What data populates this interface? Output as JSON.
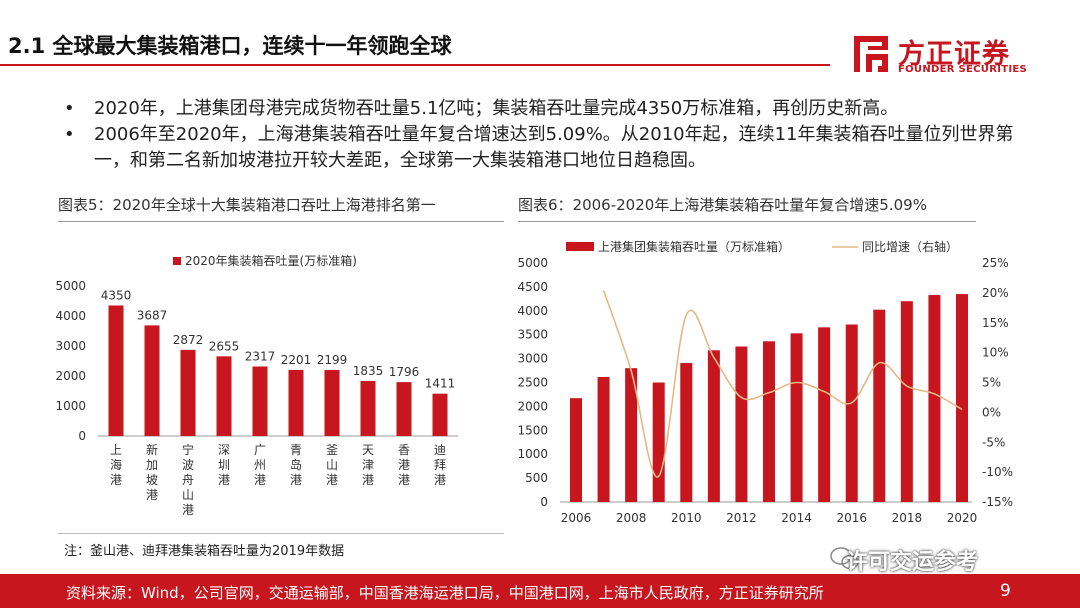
{
  "title": "2.1 全球最大集装箱港口，连续十一年领跑全球",
  "logo": {
    "cn": "方正证券",
    "en": "FOUNDER SECURITIES",
    "mark_color": "#c8161e"
  },
  "bullets": [
    "2020年，上港集团母港完成货物吞吐量5.1亿吨；集装箱吞吐量完成4350万标准箱，再创历史新高。",
    "2006年至2020年，上海港集装箱吞吐量年复合增速达到5.09%。从2010年起，连续11年集装箱吞吐量位列世界第一，和第二名新加坡港拉开较大差距，全球第一大集装箱港口地位日趋稳固。"
  ],
  "bullet_symbol": "•",
  "chart5_caption": "图表5：2020年全球十大集装箱港口吞吐上海港排名第一",
  "chart6_caption": "图表6：2006-2020年上海港集装箱吞吐量年复合增速5.09%",
  "note": "注：釜山港、迪拜港集装箱吞吐量为2019年数据",
  "footer": {
    "source": "资料来源：Wind，公司官网，交通运输部，中国香港海运港口局，中国港口网，上海市人民政府，方正证券研究所",
    "page": "9"
  },
  "watermark": "许可交运参考",
  "colors": {
    "accent": "#c8161e",
    "line": "#e3b987"
  },
  "chart_data": [
    {
      "type": "bar",
      "title": "",
      "legend": "2020年集装箱吞吐量(万标准箱)",
      "legend_position": "top",
      "categories": [
        "上海港",
        "新加坡港",
        "宁波舟山港",
        "深圳港",
        "广州港",
        "青岛港",
        "釜山港",
        "天津港",
        "香港港",
        "迪拜港"
      ],
      "values": [
        4350,
        3687,
        2872,
        2655,
        2317,
        2201,
        2199,
        1835,
        1796,
        1411
      ],
      "yticks": [
        0,
        1000,
        2000,
        3000,
        4000,
        5000
      ],
      "ylim": [
        0,
        5000
      ],
      "grid": false,
      "data_labels": true
    },
    {
      "type": "bar",
      "title": "",
      "legend_position": "top",
      "x": [
        2006,
        2007,
        2008,
        2009,
        2010,
        2011,
        2012,
        2013,
        2014,
        2015,
        2016,
        2017,
        2018,
        2019,
        2020
      ],
      "xticks": [
        2006,
        2008,
        2010,
        2012,
        2014,
        2016,
        2018,
        2020
      ],
      "series": [
        {
          "name": "上港集团集装箱吞吐量（万标准箱）",
          "type": "bar",
          "axis": "left",
          "values": [
            2172,
            2615,
            2800,
            2500,
            2907,
            3174,
            3253,
            3362,
            3529,
            3654,
            3713,
            4023,
            4201,
            4330,
            4350
          ]
        },
        {
          "name": "同比增速（右轴）",
          "type": "line",
          "axis": "right",
          "values": [
            null,
            20.4,
            7.0,
            -10.7,
            16.3,
            9.2,
            2.5,
            3.3,
            5.0,
            3.5,
            1.6,
            8.3,
            4.4,
            3.1,
            0.5
          ]
        }
      ],
      "y_left": {
        "ylim": [
          0,
          5000
        ],
        "ticks": [
          0,
          500,
          1000,
          1500,
          2000,
          2500,
          3000,
          3500,
          4000,
          4500,
          5000
        ]
      },
      "y_right": {
        "ylim": [
          -15,
          25
        ],
        "ticks": [
          "-15%",
          "-10%",
          "-5%",
          "0%",
          "5%",
          "10%",
          "15%",
          "20%",
          "25%"
        ]
      },
      "grid": false
    }
  ]
}
